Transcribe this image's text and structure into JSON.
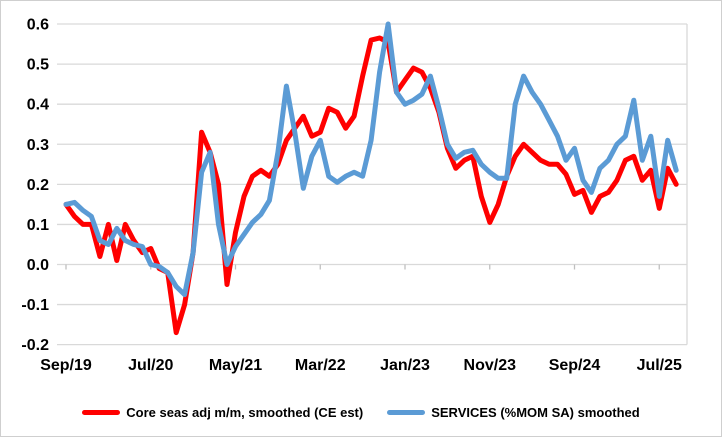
{
  "figure": {
    "background": "#FFFFFF",
    "border_color": "#CFCFCF",
    "gridline_color": "#D9D9D9",
    "tick_color": "#BFBFBF",
    "text_color": "#000000"
  },
  "legend": {
    "entries": [
      {
        "label": "Core seas adj m/m, smoothed (CE est)",
        "color": "#FF0000"
      },
      {
        "label": "SERVICES (%MOM SA) smoothed",
        "color": "#5B9BD5"
      }
    ]
  },
  "chart_data": {
    "type": "line",
    "title": "",
    "xlabel": "",
    "ylabel": "",
    "ylim": [
      -0.2,
      0.6
    ],
    "grid": "horizontal",
    "legend_position": "bottom",
    "y_ticks": [
      0.6,
      0.5,
      0.4,
      0.3,
      0.2,
      0.1,
      0.0,
      -0.1,
      -0.2
    ],
    "y_tick_labels": [
      "0.6",
      "0.5",
      "0.4",
      "0.3",
      "0.2",
      "0.1",
      "0.0",
      "-0.1",
      "-0.2"
    ],
    "x_tick_indices": [
      0,
      10,
      20,
      30,
      40,
      50,
      60,
      70
    ],
    "x_tick_labels": [
      "Sep/19",
      "Jul/20",
      "May/21",
      "Mar/22",
      "Jan/23",
      "Nov/23",
      "Sep/24",
      "Jul/25"
    ],
    "x": [
      "Sep/19",
      "Oct/19",
      "Nov/19",
      "Dec/19",
      "Jan/20",
      "Feb/20",
      "Mar/20",
      "Apr/20",
      "May/20",
      "Jun/20",
      "Jul/20",
      "Aug/20",
      "Sep/20",
      "Oct/20",
      "Nov/20",
      "Dec/20",
      "Jan/21",
      "Feb/21",
      "Mar/21",
      "Apr/21",
      "May/21",
      "Jun/21",
      "Jul/21",
      "Aug/21",
      "Sep/21",
      "Oct/21",
      "Nov/21",
      "Dec/21",
      "Jan/22",
      "Feb/22",
      "Mar/22",
      "Apr/22",
      "May/22",
      "Jun/22",
      "Jul/22",
      "Aug/22",
      "Sep/22",
      "Oct/22",
      "Nov/22",
      "Dec/22",
      "Jan/23",
      "Feb/23",
      "Mar/23",
      "Apr/23",
      "May/23",
      "Jun/23",
      "Jul/23",
      "Aug/23",
      "Sep/23",
      "Oct/23",
      "Nov/23",
      "Dec/23",
      "Jan/24",
      "Feb/24",
      "Mar/24",
      "Apr/24",
      "May/24",
      "Jun/24",
      "Jul/24",
      "Aug/24",
      "Sep/24",
      "Oct/24",
      "Nov/24",
      "Dec/24",
      "Jan/25",
      "Feb/25",
      "Mar/25",
      "Apr/25",
      "May/25",
      "Jun/25",
      "Jul/25",
      "Aug/25",
      "Sep/25"
    ],
    "series": [
      {
        "name": "Core seas adj m/m, smoothed (CE est)",
        "color": "#FF0000",
        "values": [
          0.15,
          0.12,
          0.1,
          0.1,
          0.02,
          0.1,
          0.01,
          0.1,
          0.06,
          0.03,
          0.04,
          -0.01,
          -0.02,
          -0.17,
          -0.1,
          0.03,
          0.33,
          0.28,
          0.2,
          -0.05,
          0.08,
          0.17,
          0.22,
          0.235,
          0.22,
          0.25,
          0.31,
          0.34,
          0.37,
          0.32,
          0.33,
          0.39,
          0.38,
          0.34,
          0.37,
          0.47,
          0.56,
          0.565,
          0.555,
          0.43,
          0.46,
          0.49,
          0.48,
          0.44,
          0.38,
          0.29,
          0.24,
          0.26,
          0.27,
          0.17,
          0.105,
          0.15,
          0.22,
          0.27,
          0.3,
          0.28,
          0.26,
          0.25,
          0.25,
          0.225,
          0.175,
          0.185,
          0.13,
          0.17,
          0.18,
          0.21,
          0.26,
          0.27,
          0.21,
          0.235,
          0.14,
          0.24,
          0.2
        ]
      },
      {
        "name": "SERVICES (%MOM SA) smoothed",
        "color": "#5B9BD5",
        "values": [
          0.15,
          0.155,
          0.135,
          0.12,
          0.06,
          0.05,
          0.09,
          0.06,
          0.05,
          0.045,
          0.0,
          -0.005,
          -0.02,
          -0.055,
          -0.075,
          0.03,
          0.23,
          0.28,
          0.1,
          0.0,
          0.045,
          0.075,
          0.105,
          0.125,
          0.16,
          0.28,
          0.445,
          0.33,
          0.19,
          0.27,
          0.31,
          0.22,
          0.205,
          0.22,
          0.23,
          0.22,
          0.31,
          0.48,
          0.6,
          0.43,
          0.4,
          0.41,
          0.425,
          0.47,
          0.39,
          0.3,
          0.265,
          0.28,
          0.285,
          0.25,
          0.23,
          0.215,
          0.215,
          0.4,
          0.47,
          0.43,
          0.4,
          0.36,
          0.32,
          0.26,
          0.29,
          0.21,
          0.18,
          0.24,
          0.26,
          0.3,
          0.32,
          0.41,
          0.26,
          0.32,
          0.17,
          0.31,
          0.235
        ]
      }
    ]
  }
}
